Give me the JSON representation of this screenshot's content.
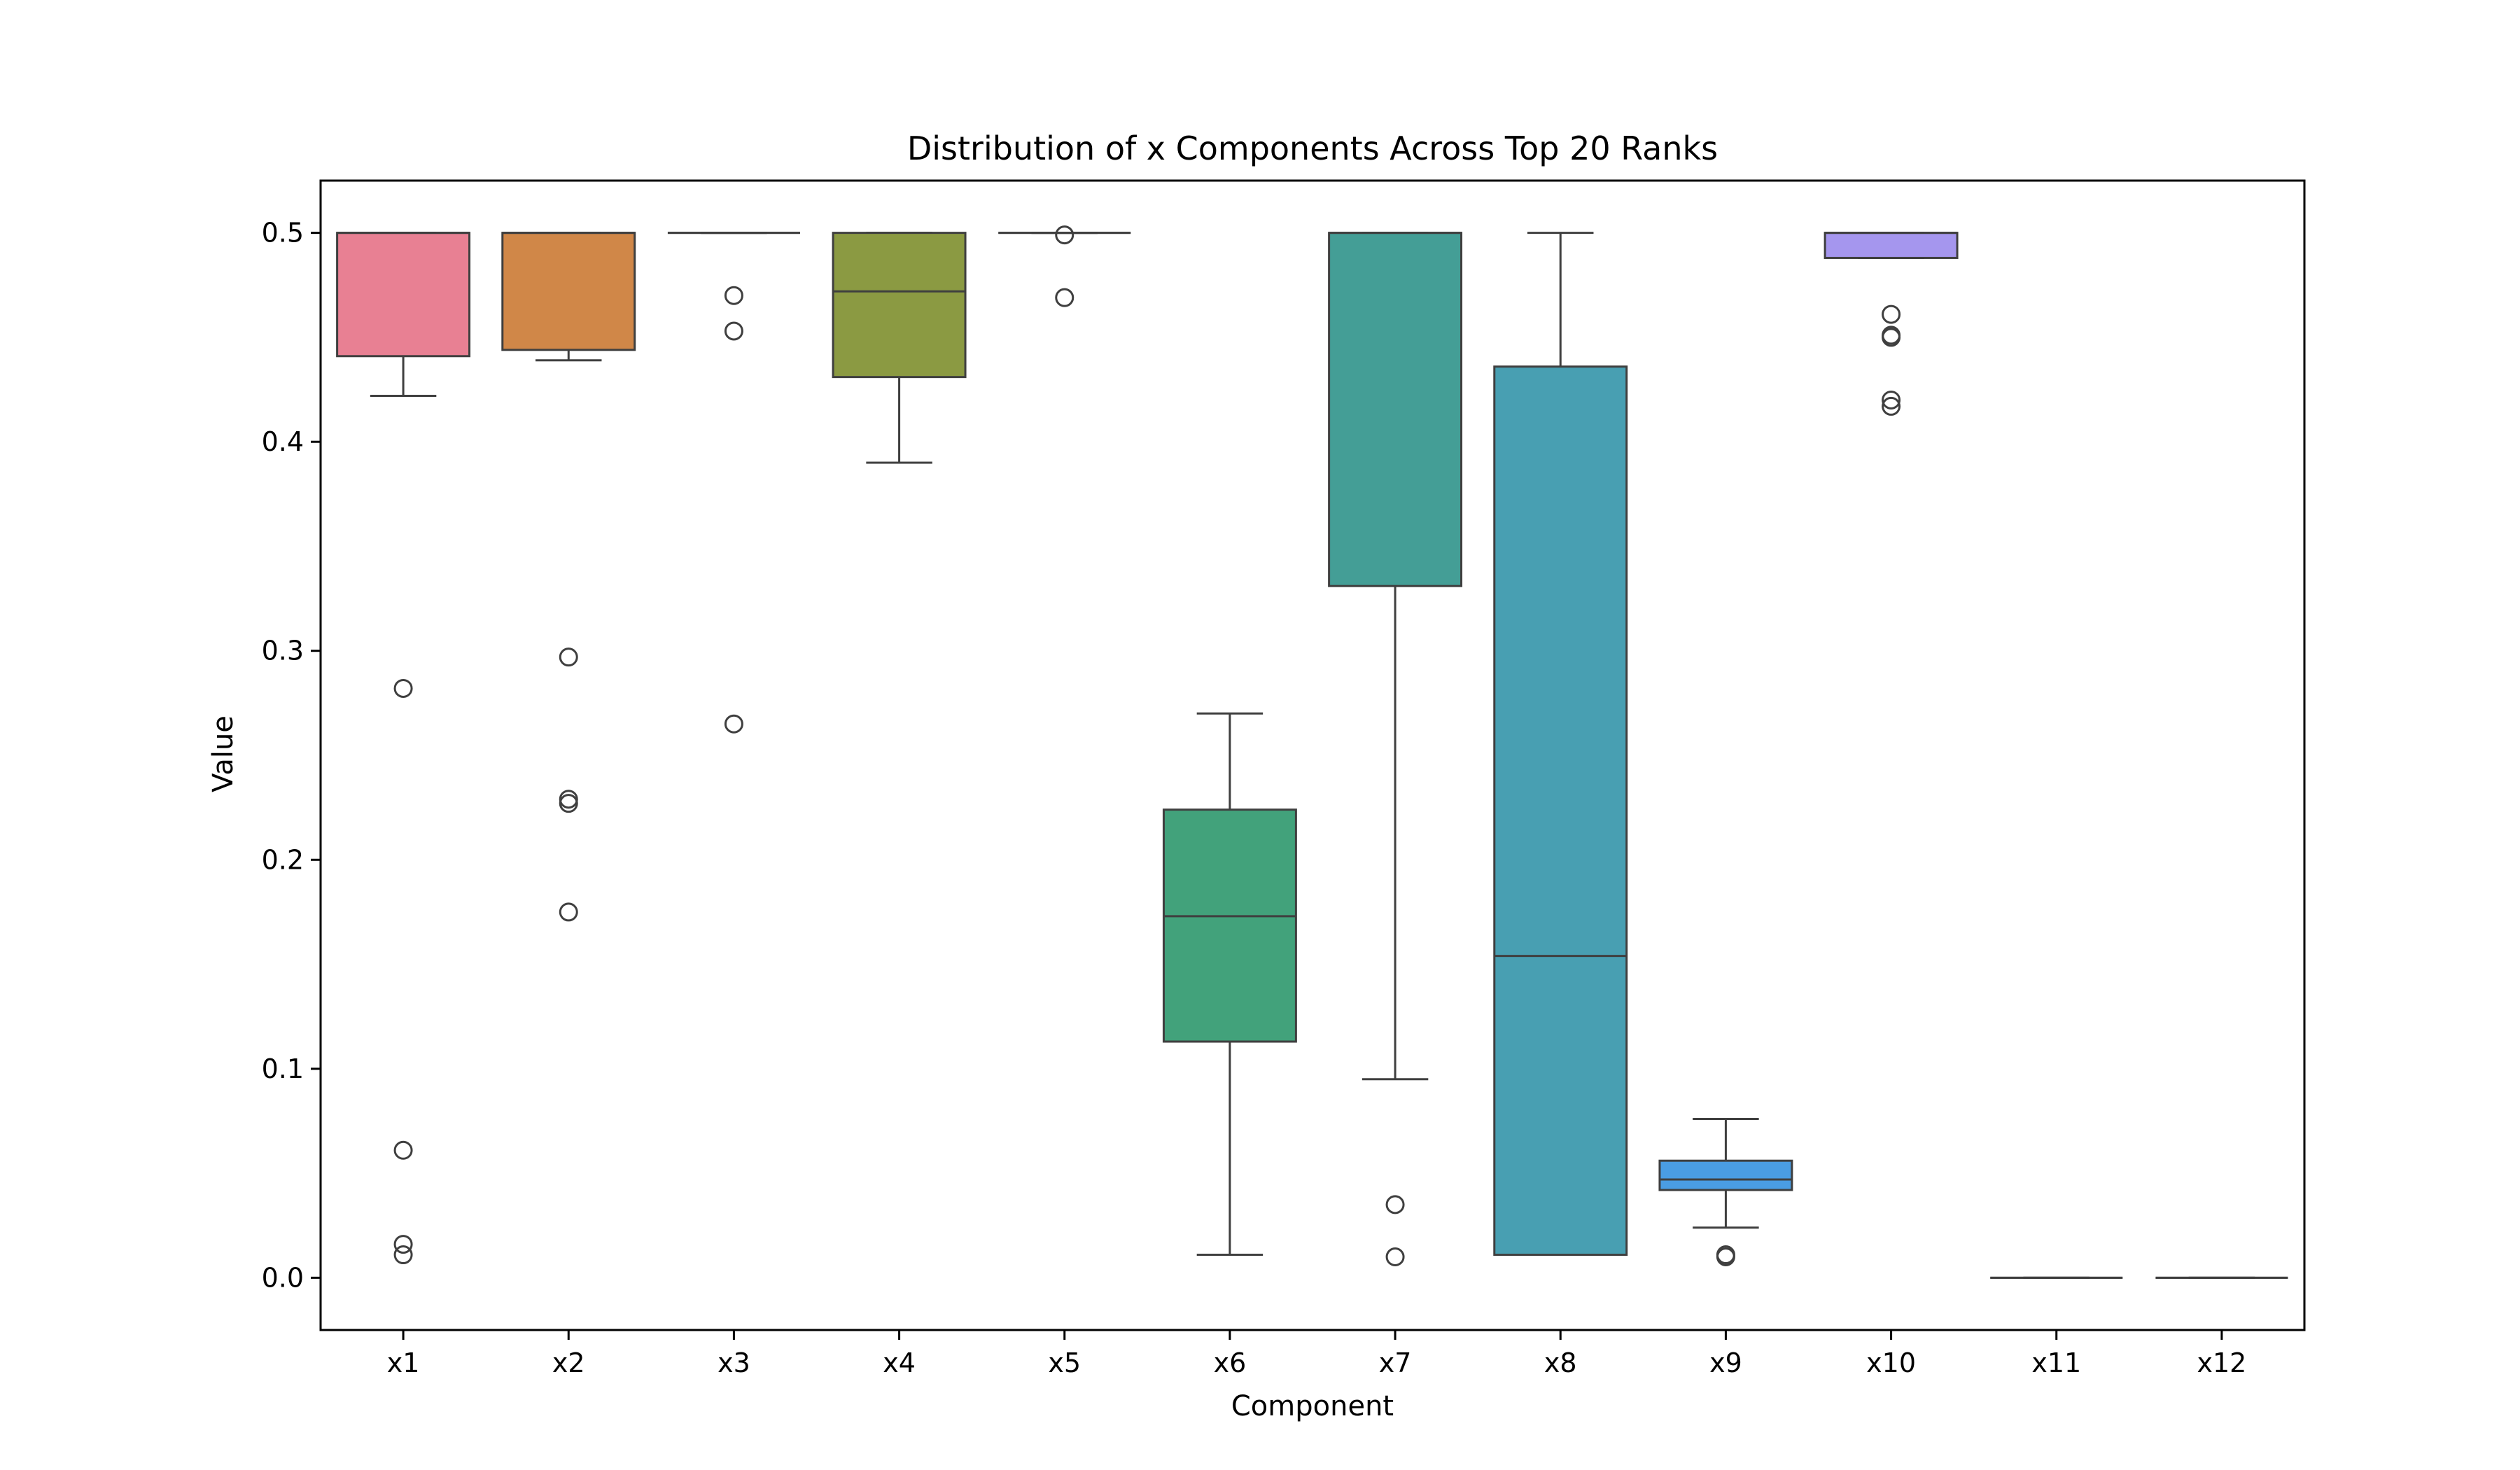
{
  "chart_data": {
    "type": "box",
    "title": "Distribution of x Components Across Top 20 Ranks",
    "xlabel": "Component",
    "ylabel": "Value",
    "ylim": [
      -0.025,
      0.525
    ],
    "yticks": [
      "0.0",
      "0.1",
      "0.2",
      "0.3",
      "0.4",
      "0.5"
    ],
    "grid": false,
    "categories": [
      "x1",
      "x2",
      "x3",
      "x4",
      "x5",
      "x6",
      "x7",
      "x8",
      "x9",
      "x10",
      "x11",
      "x12"
    ],
    "boxes": [
      {
        "name": "x1",
        "color": "#e88093",
        "q1": 0.441,
        "median": 0.5,
        "q3": 0.5,
        "whisker_low": 0.422,
        "whisker_high": 0.5,
        "outliers": [
          0.282,
          0.061,
          0.016,
          0.011
        ]
      },
      {
        "name": "x2",
        "color": "#d08748",
        "q1": 0.444,
        "median": 0.5,
        "q3": 0.5,
        "whisker_low": 0.439,
        "whisker_high": 0.5,
        "outliers": [
          0.297,
          0.229,
          0.227,
          0.175
        ]
      },
      {
        "name": "x3",
        "color": "#b09d46",
        "q1": 0.5,
        "median": 0.5,
        "q3": 0.5,
        "whisker_low": 0.5,
        "whisker_high": 0.5,
        "outliers": [
          0.47,
          0.453,
          0.265
        ]
      },
      {
        "name": "x4",
        "color": "#8b9a42",
        "q1": 0.431,
        "median": 0.472,
        "q3": 0.5,
        "whisker_low": 0.39,
        "whisker_high": 0.5,
        "outliers": []
      },
      {
        "name": "x5",
        "color": "#5ca24a",
        "q1": 0.5,
        "median": 0.5,
        "q3": 0.5,
        "whisker_low": 0.5,
        "whisker_high": 0.5,
        "outliers": [
          0.499,
          0.469
        ]
      },
      {
        "name": "x6",
        "color": "#42a27b",
        "q1": 0.113,
        "median": 0.173,
        "q3": 0.224,
        "whisker_low": 0.011,
        "whisker_high": 0.27,
        "outliers": []
      },
      {
        "name": "x7",
        "color": "#449e96",
        "q1": 0.331,
        "median": 0.5,
        "q3": 0.5,
        "whisker_low": 0.095,
        "whisker_high": 0.5,
        "outliers": [
          0.035,
          0.01
        ]
      },
      {
        "name": "x8",
        "color": "#489fb2",
        "q1": 0.011,
        "median": 0.154,
        "q3": 0.436,
        "whisker_low": 0.011,
        "whisker_high": 0.5,
        "outliers": []
      },
      {
        "name": "x9",
        "color": "#4a9de3",
        "q1": 0.042,
        "median": 0.047,
        "q3": 0.056,
        "whisker_low": 0.024,
        "whisker_high": 0.076,
        "outliers": [
          0.011,
          0.01
        ]
      },
      {
        "name": "x10",
        "color": "#a596ee",
        "q1": 0.488,
        "median": 0.5,
        "q3": 0.5,
        "whisker_low": 0.488,
        "whisker_high": 0.5,
        "outliers": [
          0.461,
          0.451,
          0.45,
          0.42,
          0.417
        ]
      },
      {
        "name": "x11",
        "color": "#e47ee8",
        "q1": 0.0,
        "median": 0.0,
        "q3": 0.0,
        "whisker_low": 0.0,
        "whisker_high": 0.0,
        "outliers": []
      },
      {
        "name": "x12",
        "color": "#ea7ec0",
        "q1": 0.0,
        "median": 0.0,
        "q3": 0.0,
        "whisker_low": 0.0,
        "whisker_high": 0.0,
        "outliers": []
      }
    ]
  }
}
